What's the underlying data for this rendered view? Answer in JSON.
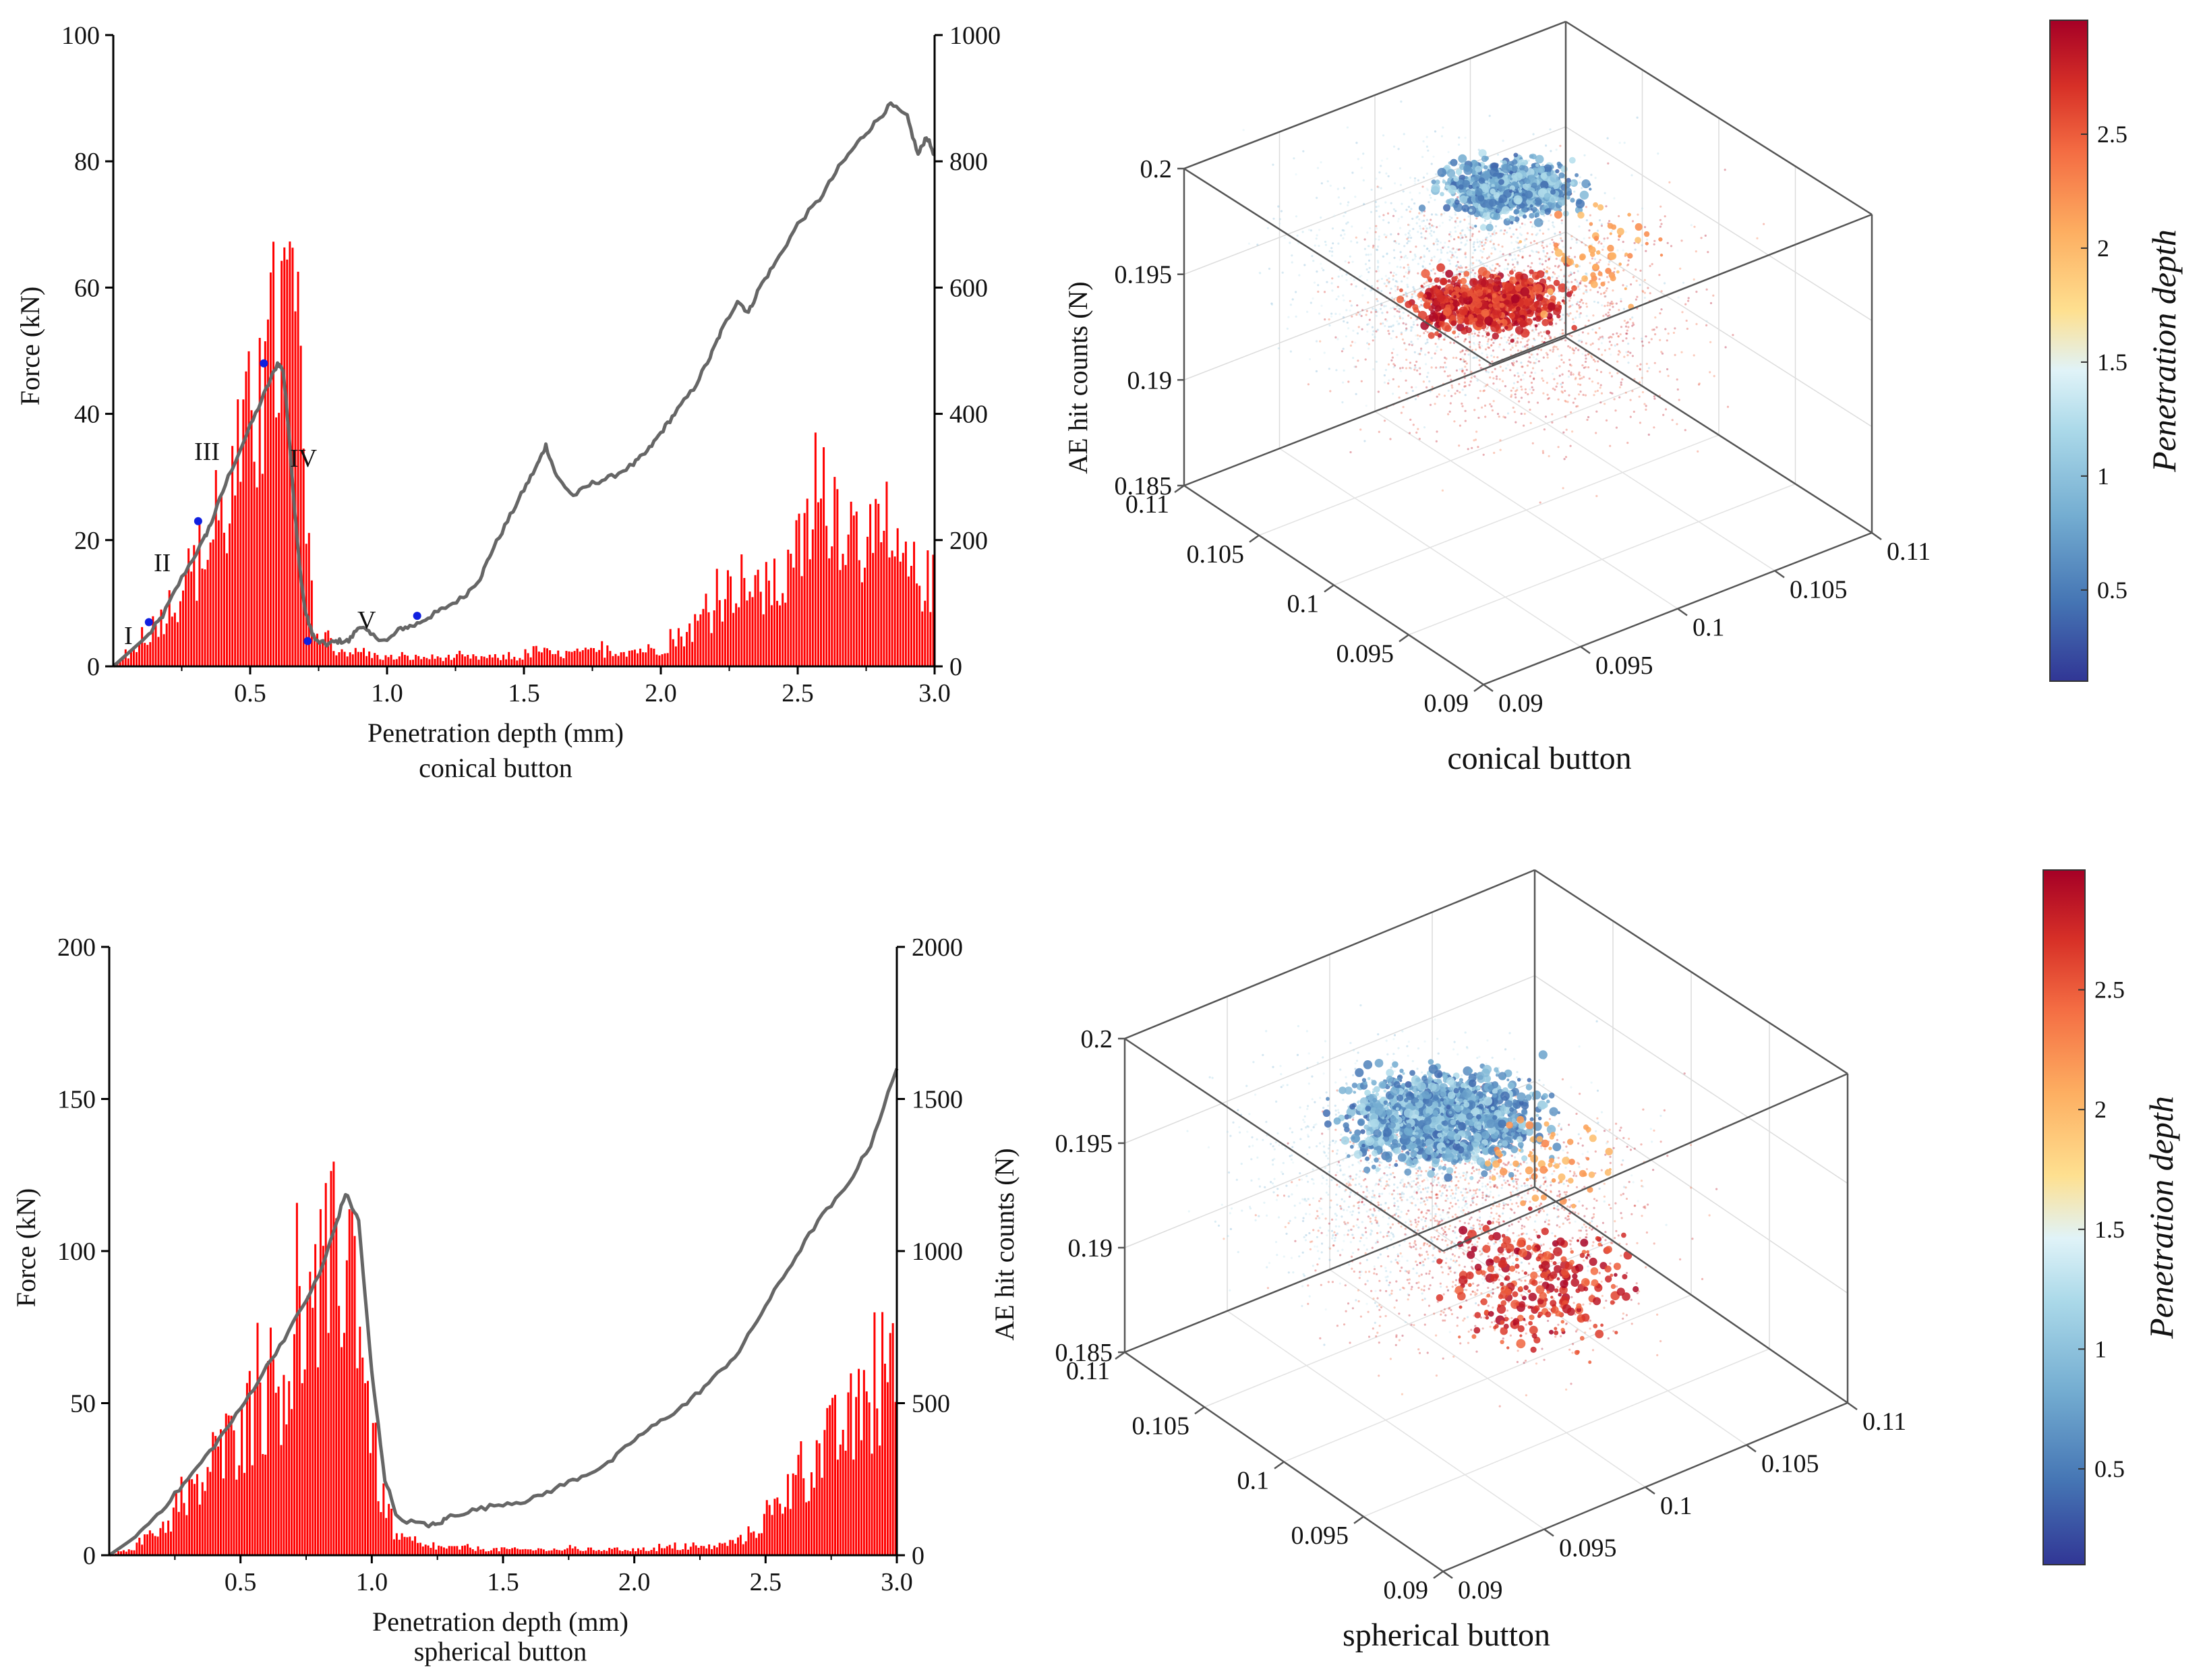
{
  "chart_data": [
    {
      "type": "bar+line",
      "subtitle": "conical button",
      "xlabel": "Penetration depth (mm)",
      "ylabel_left": "Force (kN)",
      "ylabel_right": "",
      "xlim": [
        0.0,
        3.0
      ],
      "ylim_left": [
        0,
        100
      ],
      "ylim_right": [
        0,
        1000
      ],
      "xticks": [
        "0.5",
        "1.0",
        "1.5",
        "2.0",
        "2.5",
        "3.0"
      ],
      "yticks_left": [
        "0",
        "20",
        "40",
        "60",
        "80",
        "100"
      ],
      "yticks_right": [
        "0",
        "200",
        "400",
        "600",
        "800",
        "1000"
      ],
      "grid": false,
      "series": [
        {
          "kind": "line",
          "axis": "right",
          "color": "#666666",
          "points": [
            [
              0.0,
              0
            ],
            [
              0.13,
              50
            ],
            [
              0.18,
              80
            ],
            [
              0.25,
              140
            ],
            [
              0.33,
              200
            ],
            [
              0.36,
              230
            ],
            [
              0.42,
              300
            ],
            [
              0.5,
              380
            ],
            [
              0.56,
              440
            ],
            [
              0.6,
              480
            ],
            [
              0.62,
              470
            ],
            [
              0.64,
              380
            ],
            [
              0.66,
              260
            ],
            [
              0.68,
              160
            ],
            [
              0.7,
              90
            ],
            [
              0.72,
              60
            ],
            [
              0.74,
              40
            ],
            [
              0.78,
              35
            ],
            [
              0.82,
              40
            ],
            [
              0.86,
              40
            ],
            [
              0.9,
              65
            ],
            [
              0.94,
              50
            ],
            [
              1.0,
              40
            ],
            [
              1.05,
              60
            ],
            [
              1.1,
              65
            ],
            [
              1.16,
              80
            ],
            [
              1.2,
              90
            ],
            [
              1.28,
              110
            ],
            [
              1.34,
              140
            ],
            [
              1.38,
              180
            ],
            [
              1.44,
              230
            ],
            [
              1.5,
              280
            ],
            [
              1.55,
              320
            ],
            [
              1.58,
              350
            ],
            [
              1.62,
              300
            ],
            [
              1.68,
              270
            ],
            [
              1.75,
              290
            ],
            [
              1.82,
              300
            ],
            [
              1.9,
              320
            ],
            [
              1.95,
              340
            ],
            [
              2.0,
              370
            ],
            [
              2.05,
              400
            ],
            [
              2.12,
              440
            ],
            [
              2.18,
              490
            ],
            [
              2.22,
              530
            ],
            [
              2.28,
              580
            ],
            [
              2.32,
              560
            ],
            [
              2.36,
              600
            ],
            [
              2.42,
              640
            ],
            [
              2.5,
              700
            ],
            [
              2.58,
              740
            ],
            [
              2.65,
              790
            ],
            [
              2.72,
              830
            ],
            [
              2.78,
              860
            ],
            [
              2.84,
              890
            ],
            [
              2.9,
              870
            ],
            [
              2.94,
              810
            ],
            [
              2.97,
              840
            ],
            [
              3.0,
              810
            ]
          ]
        },
        {
          "kind": "bar",
          "axis": "left",
          "color": "#ff0000",
          "name": "",
          "profile": [
            [
              0.0,
              0
            ],
            [
              0.1,
              4
            ],
            [
              0.2,
              10
            ],
            [
              0.3,
              17
            ],
            [
              0.4,
              25
            ],
            [
              0.5,
              40
            ],
            [
              0.57,
              50
            ],
            [
              0.62,
              60
            ],
            [
              0.66,
              60
            ],
            [
              0.68,
              45
            ],
            [
              0.7,
              25
            ],
            [
              0.72,
              12
            ],
            [
              0.75,
              5
            ],
            [
              0.8,
              3
            ],
            [
              1.0,
              1.5
            ],
            [
              1.5,
              1.5
            ],
            [
              1.55,
              3
            ],
            [
              1.6,
              2
            ],
            [
              2.0,
              3
            ],
            [
              2.1,
              6
            ],
            [
              2.2,
              10
            ],
            [
              2.28,
              15
            ],
            [
              2.35,
              12
            ],
            [
              2.45,
              14
            ],
            [
              2.55,
              24
            ],
            [
              2.62,
              30
            ],
            [
              2.7,
              23
            ],
            [
              2.8,
              20
            ],
            [
              2.9,
              16
            ],
            [
              3.0,
              14
            ]
          ]
        },
        {
          "kind": "markers",
          "axis": "right",
          "color": "#1020e0",
          "points": [
            [
              0.13,
              70
            ],
            [
              0.31,
              230
            ],
            [
              0.55,
              480
            ],
            [
              0.71,
              40
            ],
            [
              1.11,
              80
            ]
          ]
        }
      ],
      "annotations": [
        "I",
        "II",
        "III",
        "IV",
        "V"
      ]
    },
    {
      "type": "bar+line",
      "subtitle": "spherical button",
      "xlabel": "Penetration depth (mm)",
      "ylabel_left": "Force (kN)",
      "ylabel_right": "",
      "xlim": [
        0.0,
        3.0
      ],
      "ylim_left": [
        0,
        200
      ],
      "ylim_right": [
        0,
        2000
      ],
      "xticks": [
        "0.5",
        "1.0",
        "1.5",
        "2.0",
        "2.5",
        "3.0"
      ],
      "yticks_left": [
        "0",
        "50",
        "100",
        "150",
        "200"
      ],
      "yticks_right": [
        "0",
        "500",
        "1000",
        "1500",
        "2000"
      ],
      "grid": false,
      "series": [
        {
          "kind": "line",
          "axis": "right",
          "color": "#666666",
          "points": [
            [
              0.0,
              0
            ],
            [
              0.1,
              60
            ],
            [
              0.2,
              150
            ],
            [
              0.3,
              250
            ],
            [
              0.4,
              360
            ],
            [
              0.5,
              480
            ],
            [
              0.6,
              620
            ],
            [
              0.7,
              760
            ],
            [
              0.8,
              920
            ],
            [
              0.85,
              1050
            ],
            [
              0.9,
              1190
            ],
            [
              0.95,
              1100
            ],
            [
              1.0,
              600
            ],
            [
              1.05,
              250
            ],
            [
              1.1,
              120
            ],
            [
              1.2,
              100
            ],
            [
              1.25,
              100
            ],
            [
              1.3,
              130
            ],
            [
              1.4,
              150
            ],
            [
              1.5,
              170
            ],
            [
              1.6,
              180
            ],
            [
              1.7,
              220
            ],
            [
              1.8,
              260
            ],
            [
              1.9,
              300
            ],
            [
              2.0,
              380
            ],
            [
              2.1,
              440
            ],
            [
              2.2,
              500
            ],
            [
              2.3,
              580
            ],
            [
              2.4,
              670
            ],
            [
              2.5,
              820
            ],
            [
              2.6,
              960
            ],
            [
              2.7,
              1100
            ],
            [
              2.8,
              1200
            ],
            [
              2.9,
              1350
            ],
            [
              3.0,
              1600
            ]
          ]
        },
        {
          "kind": "bar",
          "axis": "left",
          "color": "#ff0000",
          "name": "",
          "profile": [
            [
              0.0,
              0
            ],
            [
              0.1,
              3
            ],
            [
              0.2,
              10
            ],
            [
              0.3,
              18
            ],
            [
              0.4,
              32
            ],
            [
              0.5,
              45
            ],
            [
              0.6,
              58
            ],
            [
              0.7,
              70
            ],
            [
              0.8,
              90
            ],
            [
              0.85,
              100
            ],
            [
              0.9,
              110
            ],
            [
              0.94,
              105
            ],
            [
              0.98,
              60
            ],
            [
              1.02,
              30
            ],
            [
              1.06,
              12
            ],
            [
              1.1,
              6
            ],
            [
              1.2,
              3
            ],
            [
              1.5,
              2
            ],
            [
              2.0,
              2
            ],
            [
              2.3,
              3
            ],
            [
              2.4,
              5
            ],
            [
              2.5,
              12
            ],
            [
              2.6,
              24
            ],
            [
              2.7,
              35
            ],
            [
              2.8,
              45
            ],
            [
              2.9,
              52
            ],
            [
              3.0,
              62
            ]
          ]
        }
      ]
    },
    {
      "type": "scatter3d",
      "subtitle": "conical button",
      "zlabel": "AE hit counts (N)",
      "zticks": [
        "0.185",
        "0.19",
        "0.195",
        "0.2"
      ],
      "xticks": [
        "0.09",
        "0.095",
        "0.1",
        "0.105",
        "0.11"
      ],
      "yticks": [
        "0.09",
        "0.095",
        "0.1",
        "0.105",
        "0.11"
      ],
      "colorbar": {
        "label": "Penetration depth",
        "ticks": [
          "0.5",
          "1",
          "1.5",
          "2",
          "2.5"
        ],
        "range": [
          0.1,
          3.0
        ],
        "colormap": [
          "#313695",
          "#4575b4",
          "#74add1",
          "#abd9e9",
          "#e0f3f8",
          "#fee090",
          "#fdae61",
          "#f46d43",
          "#d73027",
          "#a50026"
        ]
      }
    },
    {
      "type": "scatter3d",
      "subtitle": "spherical button",
      "zlabel": "AE hit counts (N)",
      "zticks": [
        "0.185",
        "0.19",
        "0.195",
        "0.2"
      ],
      "xticks": [
        "0.09",
        "0.095",
        "0.1",
        "0.105",
        "0.11"
      ],
      "yticks": [
        "0.09",
        "0.095",
        "0.1",
        "0.105",
        "0.11"
      ],
      "colorbar": {
        "label": "Penetration depth",
        "ticks": [
          "0.5",
          "1",
          "1.5",
          "2",
          "2.5"
        ],
        "range": [
          0.1,
          3.0
        ],
        "colormap": [
          "#313695",
          "#4575b4",
          "#74add1",
          "#abd9e9",
          "#e0f3f8",
          "#fee090",
          "#fdae61",
          "#f46d43",
          "#d73027",
          "#a50026"
        ]
      }
    }
  ]
}
